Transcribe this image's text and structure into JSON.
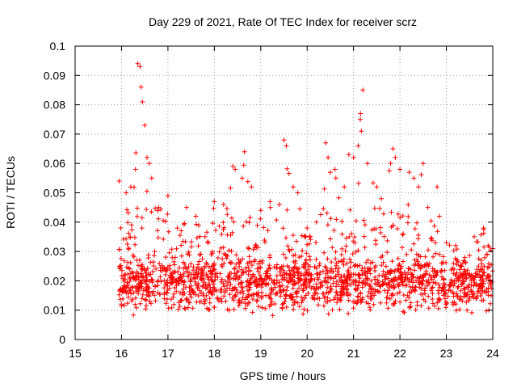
{
  "chart_data": {
    "type": "scatter",
    "title": "Day 229 of 2021, Rate Of TEC Index for receiver scrz",
    "xlabel": "GPS time / hours",
    "ylabel": "ROTI / TECUs",
    "xlim": [
      15,
      24
    ],
    "ylim": [
      0,
      0.1
    ],
    "x_ticks": [
      "15",
      "16",
      "17",
      "18",
      "19",
      "20",
      "21",
      "22",
      "23",
      "24"
    ],
    "y_ticks": [
      "0",
      "0.01",
      "0.02",
      "0.03",
      "0.04",
      "0.05",
      "0.06",
      "0.07",
      "0.08",
      "0.09",
      "0.1"
    ],
    "grid": true,
    "legend": "none",
    "marker": "+",
    "color": "#ff0000",
    "series": [
      {
        "x": [
          15.95,
          16.1,
          16.2,
          16.3,
          16.35,
          16.4,
          16.42,
          16.45,
          16.5,
          16.55,
          16.6,
          16.65,
          16.8,
          17.0,
          17.2,
          17.4,
          17.6,
          17.8,
          18.0,
          18.2,
          18.4,
          18.45,
          18.6,
          18.65,
          18.8,
          19.0,
          19.2,
          19.4,
          19.5,
          19.55,
          19.7,
          19.8,
          20.0,
          20.2,
          20.4,
          20.45,
          20.5,
          20.6,
          20.8,
          20.9,
          21.0,
          21.1,
          21.15,
          21.2,
          21.3,
          21.5,
          21.6,
          21.8,
          21.85,
          21.9,
          22.0,
          22.2,
          22.3,
          22.4,
          22.5,
          22.6,
          22.8,
          22.85,
          23.0,
          23.2,
          23.4,
          23.6,
          23.8,
          23.9,
          24.0
        ],
        "y": [
          0.054,
          0.05,
          0.052,
          0.058,
          0.094,
          0.093,
          0.086,
          0.081,
          0.073,
          0.062,
          0.06,
          0.055,
          0.045,
          0.049,
          0.038,
          0.045,
          0.042,
          0.035,
          0.047,
          0.046,
          0.059,
          0.058,
          0.055,
          0.064,
          0.052,
          0.044,
          0.047,
          0.046,
          0.068,
          0.066,
          0.052,
          0.05,
          0.038,
          0.04,
          0.067,
          0.062,
          0.057,
          0.058,
          0.052,
          0.063,
          0.062,
          0.066,
          0.077,
          0.085,
          0.06,
          0.052,
          0.048,
          0.06,
          0.065,
          0.062,
          0.058,
          0.057,
          0.055,
          0.052,
          0.06,
          0.045,
          0.052,
          0.042,
          0.033,
          0.032,
          0.028,
          0.035,
          0.038,
          0.032,
          0.031
        ]
      }
    ]
  }
}
